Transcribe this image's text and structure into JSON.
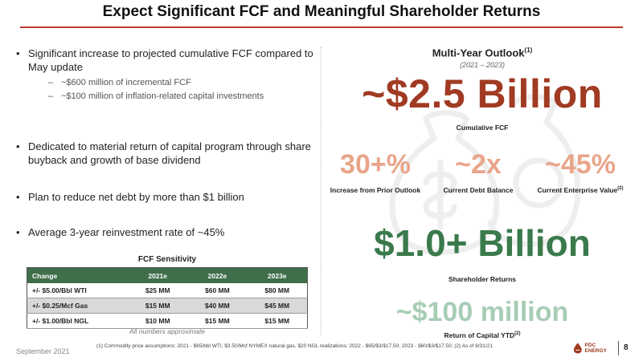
{
  "title": "Expect Significant FCF and Meaningful Shareholder Returns",
  "bullets": [
    {
      "text": "Significant increase to projected cumulative FCF compared to May update",
      "subs": [
        "~$600 million of incremental FCF",
        "~$100 million of inflation-related capital investments"
      ]
    },
    {
      "text": "Dedicated to material return of capital program through share buyback and growth of base dividend"
    },
    {
      "text": "Plan to reduce net debt by more than $1 billion"
    },
    {
      "text": "Average 3-year reinvestment rate of ~45%"
    }
  ],
  "sensitivity": {
    "title": "FCF Sensitivity",
    "headers": [
      "Change",
      "2021e",
      "2022e",
      "2023e"
    ],
    "rows": [
      [
        "+/- $5.00/Bbl WTI",
        "$25 MM",
        "$60 MM",
        "$80 MM"
      ],
      [
        "+/- $0.25/Mcf Gas",
        "$15 MM",
        "$40 MM",
        "$45 MM"
      ],
      [
        "+/- $1.00/Bbl NGL",
        "$10 MM",
        "$15 MM",
        "$15 MM"
      ]
    ],
    "note": "All numbers approximate"
  },
  "outlook": {
    "title": "Multi-Year Outlook",
    "title_sup": "(1)",
    "range": "(2021 – 2023)",
    "fcf_value": "~$2.5 Billion",
    "fcf_caption": "Cumulative FCF",
    "stats": [
      {
        "value": "30+%",
        "caption": "Increase from Prior Outlook",
        "sup": ""
      },
      {
        "value": "~2x",
        "caption": "Current Debt Balance",
        "sup": ""
      },
      {
        "value": "~45%",
        "caption": "Current Enterprise Value",
        "sup": "(2)"
      }
    ],
    "returns_value": "$1.0+ Billion",
    "returns_caption": "Shareholder Returns",
    "ytd_value": "~$100 million",
    "ytd_caption": "Return of Capital YTD",
    "ytd_sup": "(2)"
  },
  "footer": {
    "date": "September 2021",
    "note": "(1) Commodity price assumptions: 2021 - $65/bbl WTI, $3.50/Mcf NYMEX natural gas, $20 NGL realizations; 2022 - $65/$3/$17.50; 2023 - $60/$3/$17.50; (2) As of 8/31/21",
    "logo_text_1": "PDC",
    "logo_text_2": "ENERGY",
    "page": "8"
  },
  "colors": {
    "accent_red": "#a13a22",
    "accent_green": "#3a7a4c",
    "stat_peach": "#e9a58a",
    "light_green": "#a7cdb5",
    "table_header": "#3f6e4a"
  }
}
